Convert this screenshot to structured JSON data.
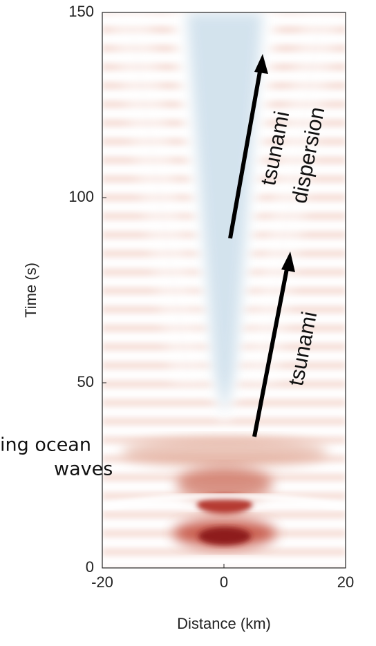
{
  "chart_data": {
    "type": "wavefield",
    "x_label": "Distance (km)",
    "y_label": "Time (s)",
    "xlim": [
      -20,
      20
    ],
    "xticks": [
      -20,
      0,
      20
    ],
    "ylim": [
      0,
      150
    ],
    "yticks": [
      0,
      50,
      100,
      150
    ],
    "annotations": [
      [
        "tsunami"
      ],
      [
        "tsunami",
        "dispersion"
      ]
    ],
    "side_text": [
      "ing ocean",
      "waves"
    ]
  }
}
